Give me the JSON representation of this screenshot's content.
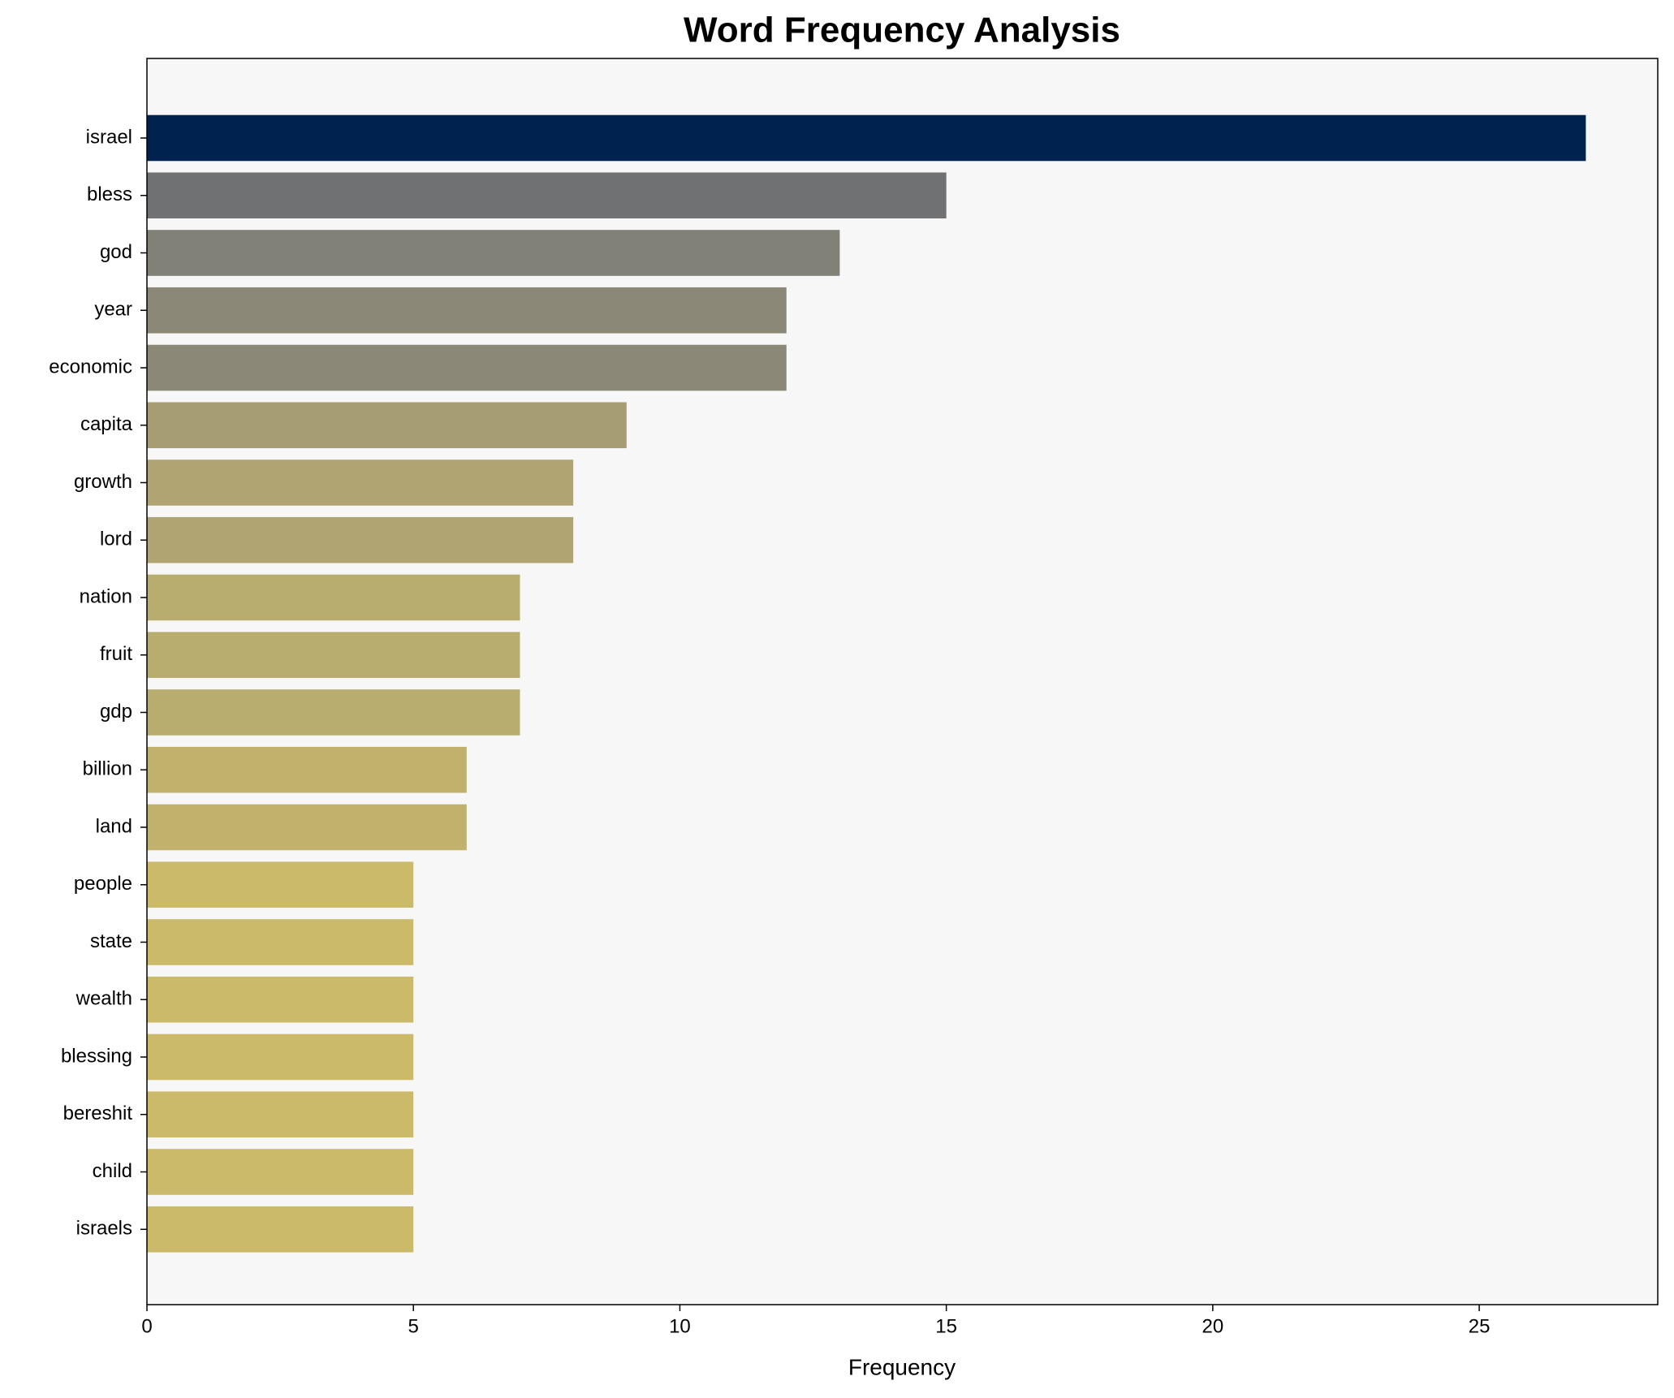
{
  "chart_data": {
    "type": "barh",
    "title": "Word Frequency Analysis",
    "xlabel": "Frequency",
    "categories": [
      "israel",
      "bless",
      "god",
      "year",
      "economic",
      "capita",
      "growth",
      "lord",
      "nation",
      "fruit",
      "gdp",
      "billion",
      "land",
      "people",
      "state",
      "wealth",
      "blessing",
      "bereshit",
      "child",
      "israels"
    ],
    "values": [
      27,
      15,
      13,
      12,
      12,
      9,
      8,
      8,
      7,
      7,
      7,
      6,
      6,
      5,
      5,
      5,
      5,
      5,
      5,
      5
    ],
    "colors": [
      "#00224e",
      "#707173",
      "#818178",
      "#8b8878",
      "#8b8878",
      "#a69d75",
      "#b0a572",
      "#b0a572",
      "#b8ac6f",
      "#b8ac6f",
      "#b8ac6f",
      "#c0b26c",
      "#c0b26c",
      "#cbba69",
      "#cbba69",
      "#cbba69",
      "#cbba69",
      "#cbba69",
      "#cbba69",
      "#cbba69"
    ],
    "xlim": [
      0,
      28.35
    ],
    "xticks": [
      0,
      5,
      10,
      15,
      20,
      25
    ],
    "grid": false
  }
}
